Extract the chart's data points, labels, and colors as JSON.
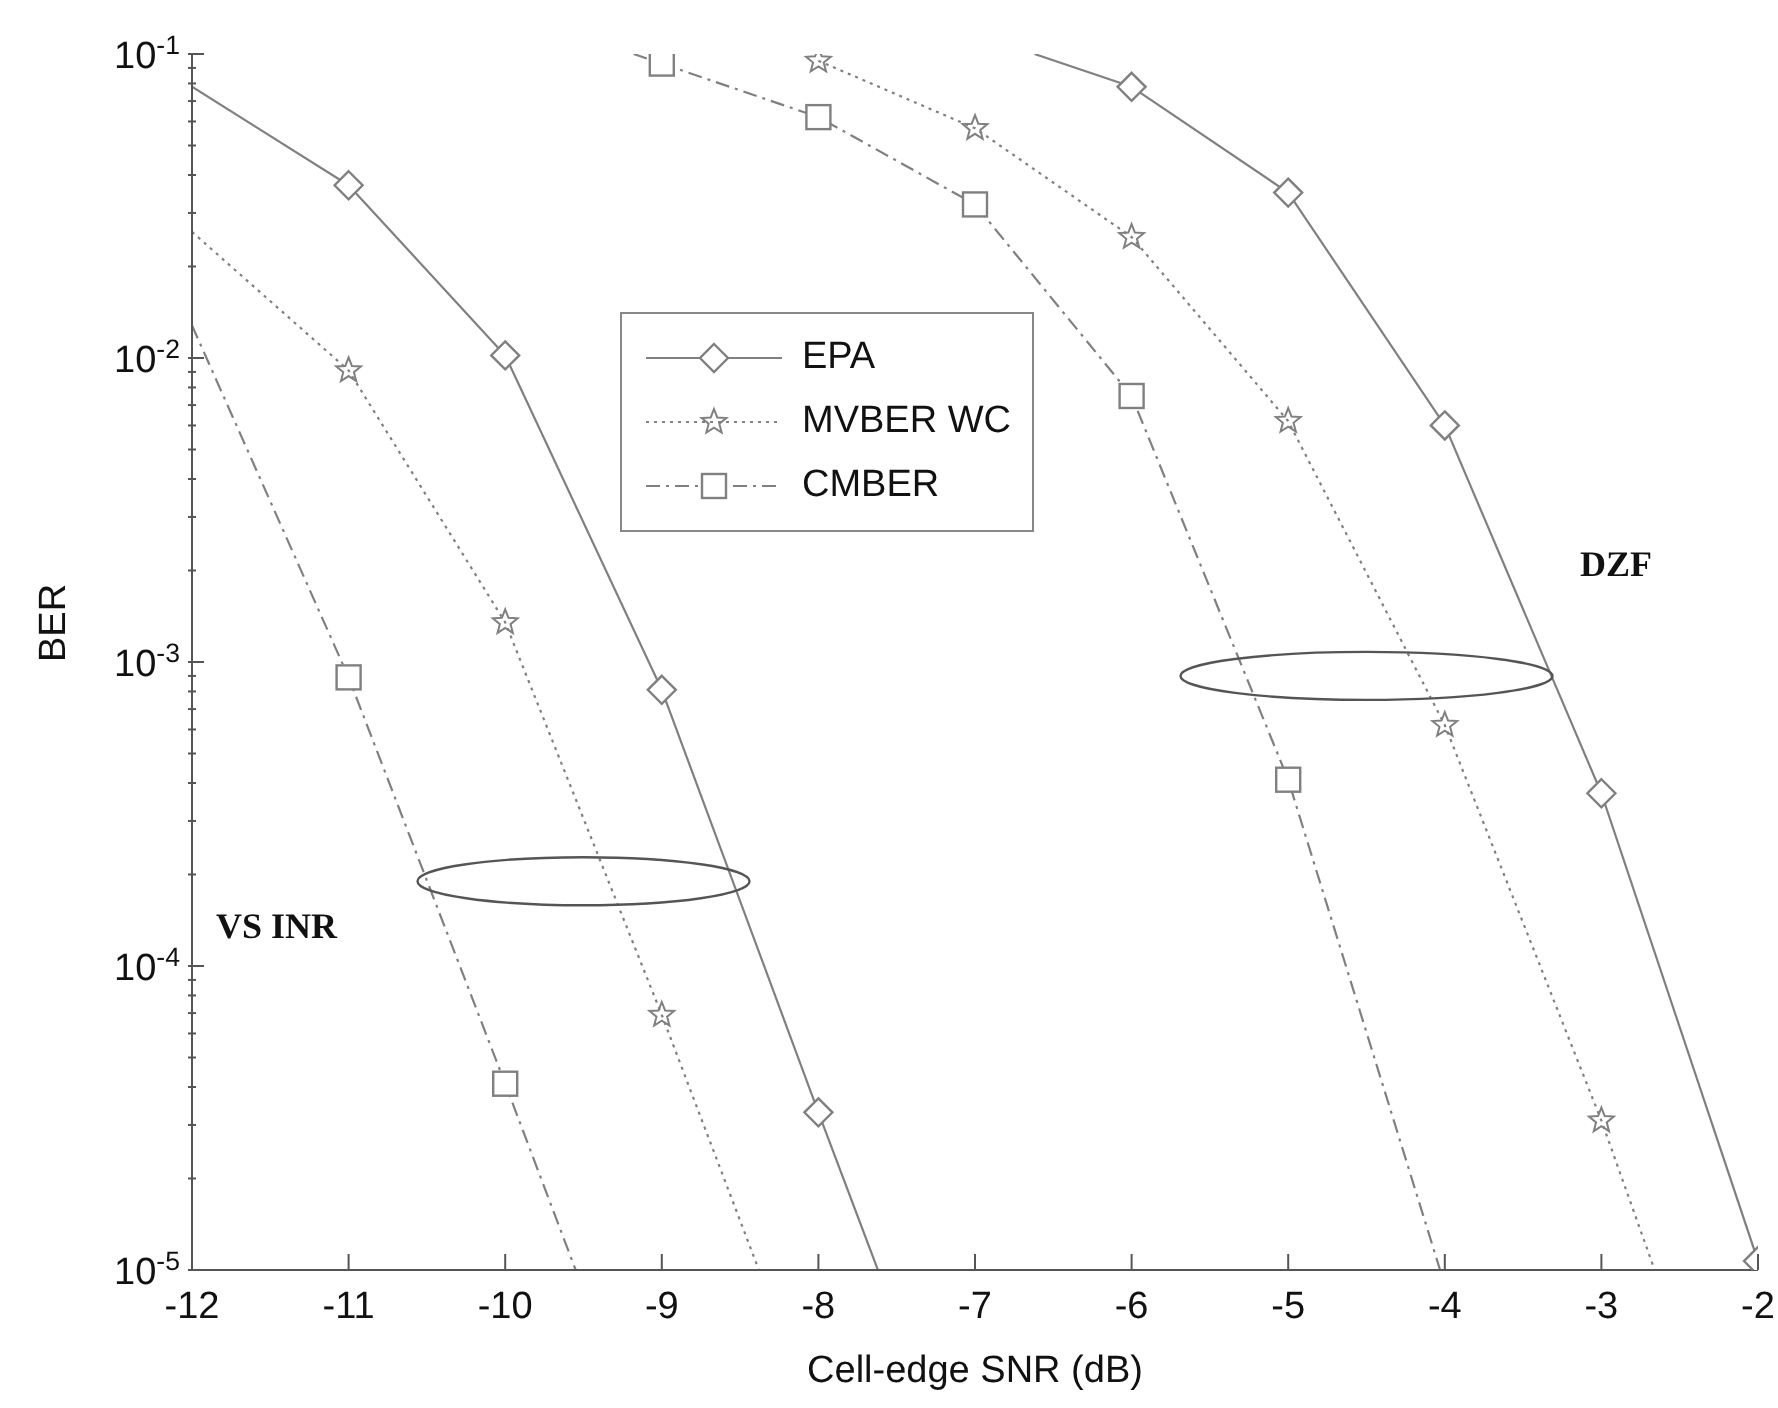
{
  "chart_data": {
    "type": "line",
    "xlabel": "Cell-edge SNR (dB)",
    "ylabel": "BER",
    "log": "y",
    "xlim": [
      -12,
      -2
    ],
    "xticks": [
      -12,
      -11,
      -10,
      -9,
      -8,
      -7,
      -6,
      -5,
      -4,
      -3,
      -2
    ],
    "ylim": [
      1e-05,
      0.1
    ],
    "yticks": [
      {
        "value": 1e-05,
        "label": "10$^{-5}$"
      },
      {
        "value": 2e-05,
        "label": null
      },
      {
        "value": 3e-05,
        "label": null
      },
      {
        "value": 4e-05,
        "label": null
      },
      {
        "value": 5e-05,
        "label": null
      },
      {
        "value": 6e-05,
        "label": null
      },
      {
        "value": 7e-05,
        "label": null
      },
      {
        "value": 8e-05,
        "label": null
      },
      {
        "value": 9e-05,
        "label": null
      },
      {
        "value": 0.0001,
        "label": "10$^{-4}$"
      },
      {
        "value": 0.0002,
        "label": null
      },
      {
        "value": 0.0003,
        "label": null
      },
      {
        "value": 0.0004,
        "label": null
      },
      {
        "value": 0.0005,
        "label": null
      },
      {
        "value": 0.0006,
        "label": null
      },
      {
        "value": 0.0007,
        "label": null
      },
      {
        "value": 0.0008,
        "label": null
      },
      {
        "value": 0.0009,
        "label": null
      },
      {
        "value": 0.001,
        "label": "10$^{-3}$"
      },
      {
        "value": 0.002,
        "label": null
      },
      {
        "value": 0.003,
        "label": null
      },
      {
        "value": 0.004,
        "label": null
      },
      {
        "value": 0.005,
        "label": null
      },
      {
        "value": 0.006,
        "label": null
      },
      {
        "value": 0.007,
        "label": null
      },
      {
        "value": 0.008,
        "label": null
      },
      {
        "value": 0.009,
        "label": null
      },
      {
        "value": 0.01,
        "label": "10$^{-2}$"
      },
      {
        "value": 0.02,
        "label": null
      },
      {
        "value": 0.03,
        "label": null
      },
      {
        "value": 0.04,
        "label": null
      },
      {
        "value": 0.05,
        "label": null
      },
      {
        "value": 0.06,
        "label": null
      },
      {
        "value": 0.07,
        "label": null
      },
      {
        "value": 0.08,
        "label": null
      },
      {
        "value": 0.09,
        "label": null
      },
      {
        "value": 0.1,
        "label": "10$^{-1}$"
      }
    ],
    "grid": false,
    "legend": "top",
    "series": [
      {
        "name": "EPA",
        "color": "#808080",
        "marker": "diamond",
        "line_style": "solid",
        "x": [
          -12,
          -11,
          -10,
          -9,
          -8,
          -7.62
        ],
        "values": [
          0.078,
          0.037,
          0.0102,
          0.00081,
          3.3e-05,
          1e-05
        ]
      },
      {
        "name": "MVBER WC",
        "color": "#808080",
        "marker": "star",
        "line_style": "dotted",
        "x": [
          -12,
          -11,
          -10,
          -9,
          -8.38
        ],
        "values": [
          0.026,
          0.0091,
          0.00135,
          6.9e-05,
          1e-05
        ]
      },
      {
        "name": "CMBER",
        "color": "#808080",
        "marker": "square",
        "line_style": "dashed",
        "x": [
          -12,
          -11,
          -10,
          -9.55
        ],
        "values": [
          0.0128,
          0.00089,
          4.1e-05,
          1e-05
        ]
      },
      {
        "color": "#808080",
        "marker": "diamond",
        "line_style": "solid",
        "x": [
          -6.62,
          -6,
          -5,
          -4,
          -3,
          -2
        ],
        "values": [
          0.1,
          0.078,
          0.035,
          0.006,
          0.00037,
          1.07e-05
        ]
      },
      {
        "color": "#808080",
        "marker": "star",
        "line_style": "dotted",
        "x": [
          -8,
          -7,
          -6,
          -5,
          -4,
          -3,
          -2.66
        ],
        "values": [
          0.095,
          0.057,
          0.025,
          0.0062,
          0.00062,
          3.1e-05,
          1e-05
        ]
      },
      {
        "color": "#808080",
        "marker": "square",
        "line_style": "dashed",
        "x": [
          -9.18,
          -9,
          -8,
          -7,
          -6,
          -5,
          -4.03
        ],
        "values": [
          0.1,
          0.093,
          0.062,
          0.032,
          0.0075,
          0.00041,
          1e-05
        ]
      }
    ],
    "annotations": [
      "VS INR",
      "DZF"
    ]
  }
}
